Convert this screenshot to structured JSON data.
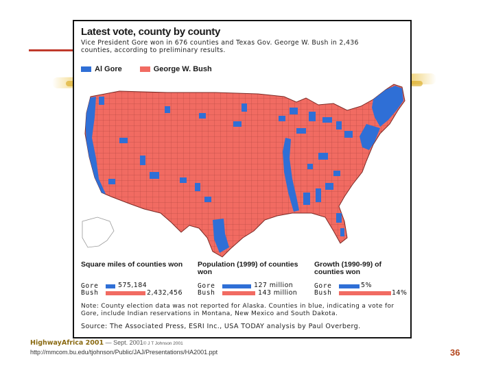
{
  "figure": {
    "title": "Latest vote, county by county",
    "subtitle": "Vice President Gore won in 676 counties and Texas Gov. George W. Bush in 2,436 counties, according to preliminary results.",
    "legend": {
      "gore_label": "Al Gore",
      "bush_label": "George W. Bush"
    },
    "colors": {
      "gore": "#2f6fd6",
      "bush": "#f16b62"
    },
    "stats": {
      "square_miles": {
        "title": "Square miles of counties won",
        "gore_label": "Gore",
        "bush_label": "Bush",
        "gore_value": "575,184",
        "bush_value": "2,432,456"
      },
      "population": {
        "title": "Population (1999) of counties won",
        "gore_label": "Gore",
        "bush_label": "Bush",
        "gore_value": "127 million",
        "bush_value": "143 million"
      },
      "growth": {
        "title": "Growth (1990-99) of counties won",
        "gore_label": "Gore",
        "bush_label": "Bush",
        "gore_value": "5%",
        "bush_value": "14%"
      }
    },
    "note": "Note: County election data was not reported for Alaska. Counties in blue, indicating a vote for Gore, include Indian reservations in Montana, New Mexico and South Dakota.",
    "source": "Source: The Associated Press, ESRI Inc., USA TODAY analysis by Paul Overberg."
  },
  "footer": {
    "brand": "HighwayAfrica 2001",
    "dash": "—",
    "date": "Sept. 2001",
    "copyright": "© J T Johnson 2001",
    "url": "http://mmcom.bu.edu/tjohnson/Public/JAJ/Presentations/HA2001.ppt",
    "page_number": "36"
  }
}
